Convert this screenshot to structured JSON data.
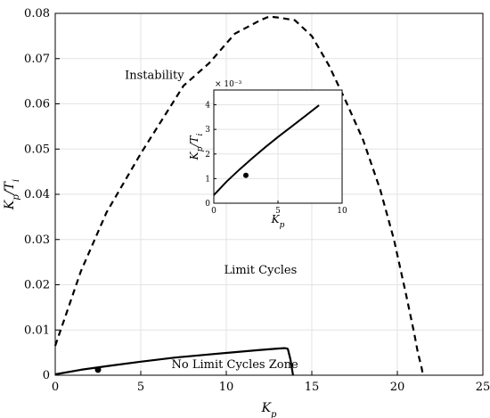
{
  "chart_data": [
    {
      "type": "line",
      "xlabel": "K_p",
      "ylabel": "K_p/T_i",
      "xlim": [
        0,
        25
      ],
      "ylim": [
        0,
        0.08
      ],
      "x_ticks": [
        0,
        5,
        10,
        15,
        20,
        25
      ],
      "y_ticks": [
        0,
        0.01,
        0.02,
        0.03,
        0.04,
        0.05,
        0.06,
        0.07,
        0.08
      ],
      "x_tick_labels": [
        "0",
        "5",
        "10",
        "15",
        "20",
        "25"
      ],
      "y_tick_labels": [
        "0",
        "0.01",
        "0.02",
        "0.03",
        "0.04",
        "0.05",
        "0.06",
        "0.07",
        "0.08"
      ],
      "grid": true,
      "series": [
        {
          "style": "dashed",
          "x": [
            0,
            0.5,
            1.5,
            3,
            5,
            7.5,
            9,
            10.5,
            12,
            12.5,
            13,
            14,
            15,
            16,
            17,
            18,
            19,
            19.8,
            20.5,
            21,
            21.2,
            21.4,
            21.5
          ],
          "y": [
            0.0065,
            0.012,
            0.023,
            0.036,
            0.049,
            0.064,
            0.069,
            0.0755,
            0.0785,
            0.0793,
            0.0791,
            0.0785,
            0.075,
            0.0685,
            0.0605,
            0.052,
            0.041,
            0.03,
            0.018,
            0.009,
            0.005,
            0.002,
            0
          ]
        },
        {
          "style": "solid",
          "x": [
            0,
            1.5,
            3,
            5,
            7,
            9,
            10.5,
            12,
            13,
            13.4,
            13.55,
            13.6,
            13.75,
            13.9
          ],
          "y": [
            0.0002,
            0.0012,
            0.002,
            0.003,
            0.0039,
            0.0046,
            0.0051,
            0.0056,
            0.0059,
            0.006,
            0.0059,
            0.0058,
            0.0035,
            0
          ]
        }
      ],
      "points": [
        {
          "x": 2.5,
          "y": 0.0012
        }
      ],
      "annotations": [
        {
          "text": "Instability",
          "x": 5.8,
          "y": 0.0655
        },
        {
          "text": "Limit Cycles",
          "x": 12,
          "y": 0.0225
        },
        {
          "text": "No Limit Cycles Zone",
          "x": 10.5,
          "y": 0.0016
        }
      ]
    },
    {
      "type": "line",
      "xlabel": "K_p",
      "ylabel": "K_p/T_i",
      "xlim": [
        0,
        10
      ],
      "ylim": [
        0,
        0.0046
      ],
      "y_scale_label": "× 10⁻³",
      "x_ticks": [
        0,
        5,
        10
      ],
      "y_ticks": [
        0,
        0.001,
        0.002,
        0.003,
        0.004
      ],
      "x_tick_labels": [
        "0",
        "5",
        "10"
      ],
      "y_tick_labels": [
        "0",
        "1",
        "2",
        "3",
        "4"
      ],
      "grid": true,
      "series": [
        {
          "style": "solid",
          "x": [
            0,
            1,
            2,
            3,
            4,
            5,
            6,
            7,
            8.2
          ],
          "y": [
            0.00033,
            0.00088,
            0.00137,
            0.00183,
            0.00227,
            0.00269,
            0.00309,
            0.00349,
            0.00398
          ]
        }
      ],
      "points": [
        {
          "x": 2.5,
          "y": 0.00113
        }
      ]
    }
  ]
}
